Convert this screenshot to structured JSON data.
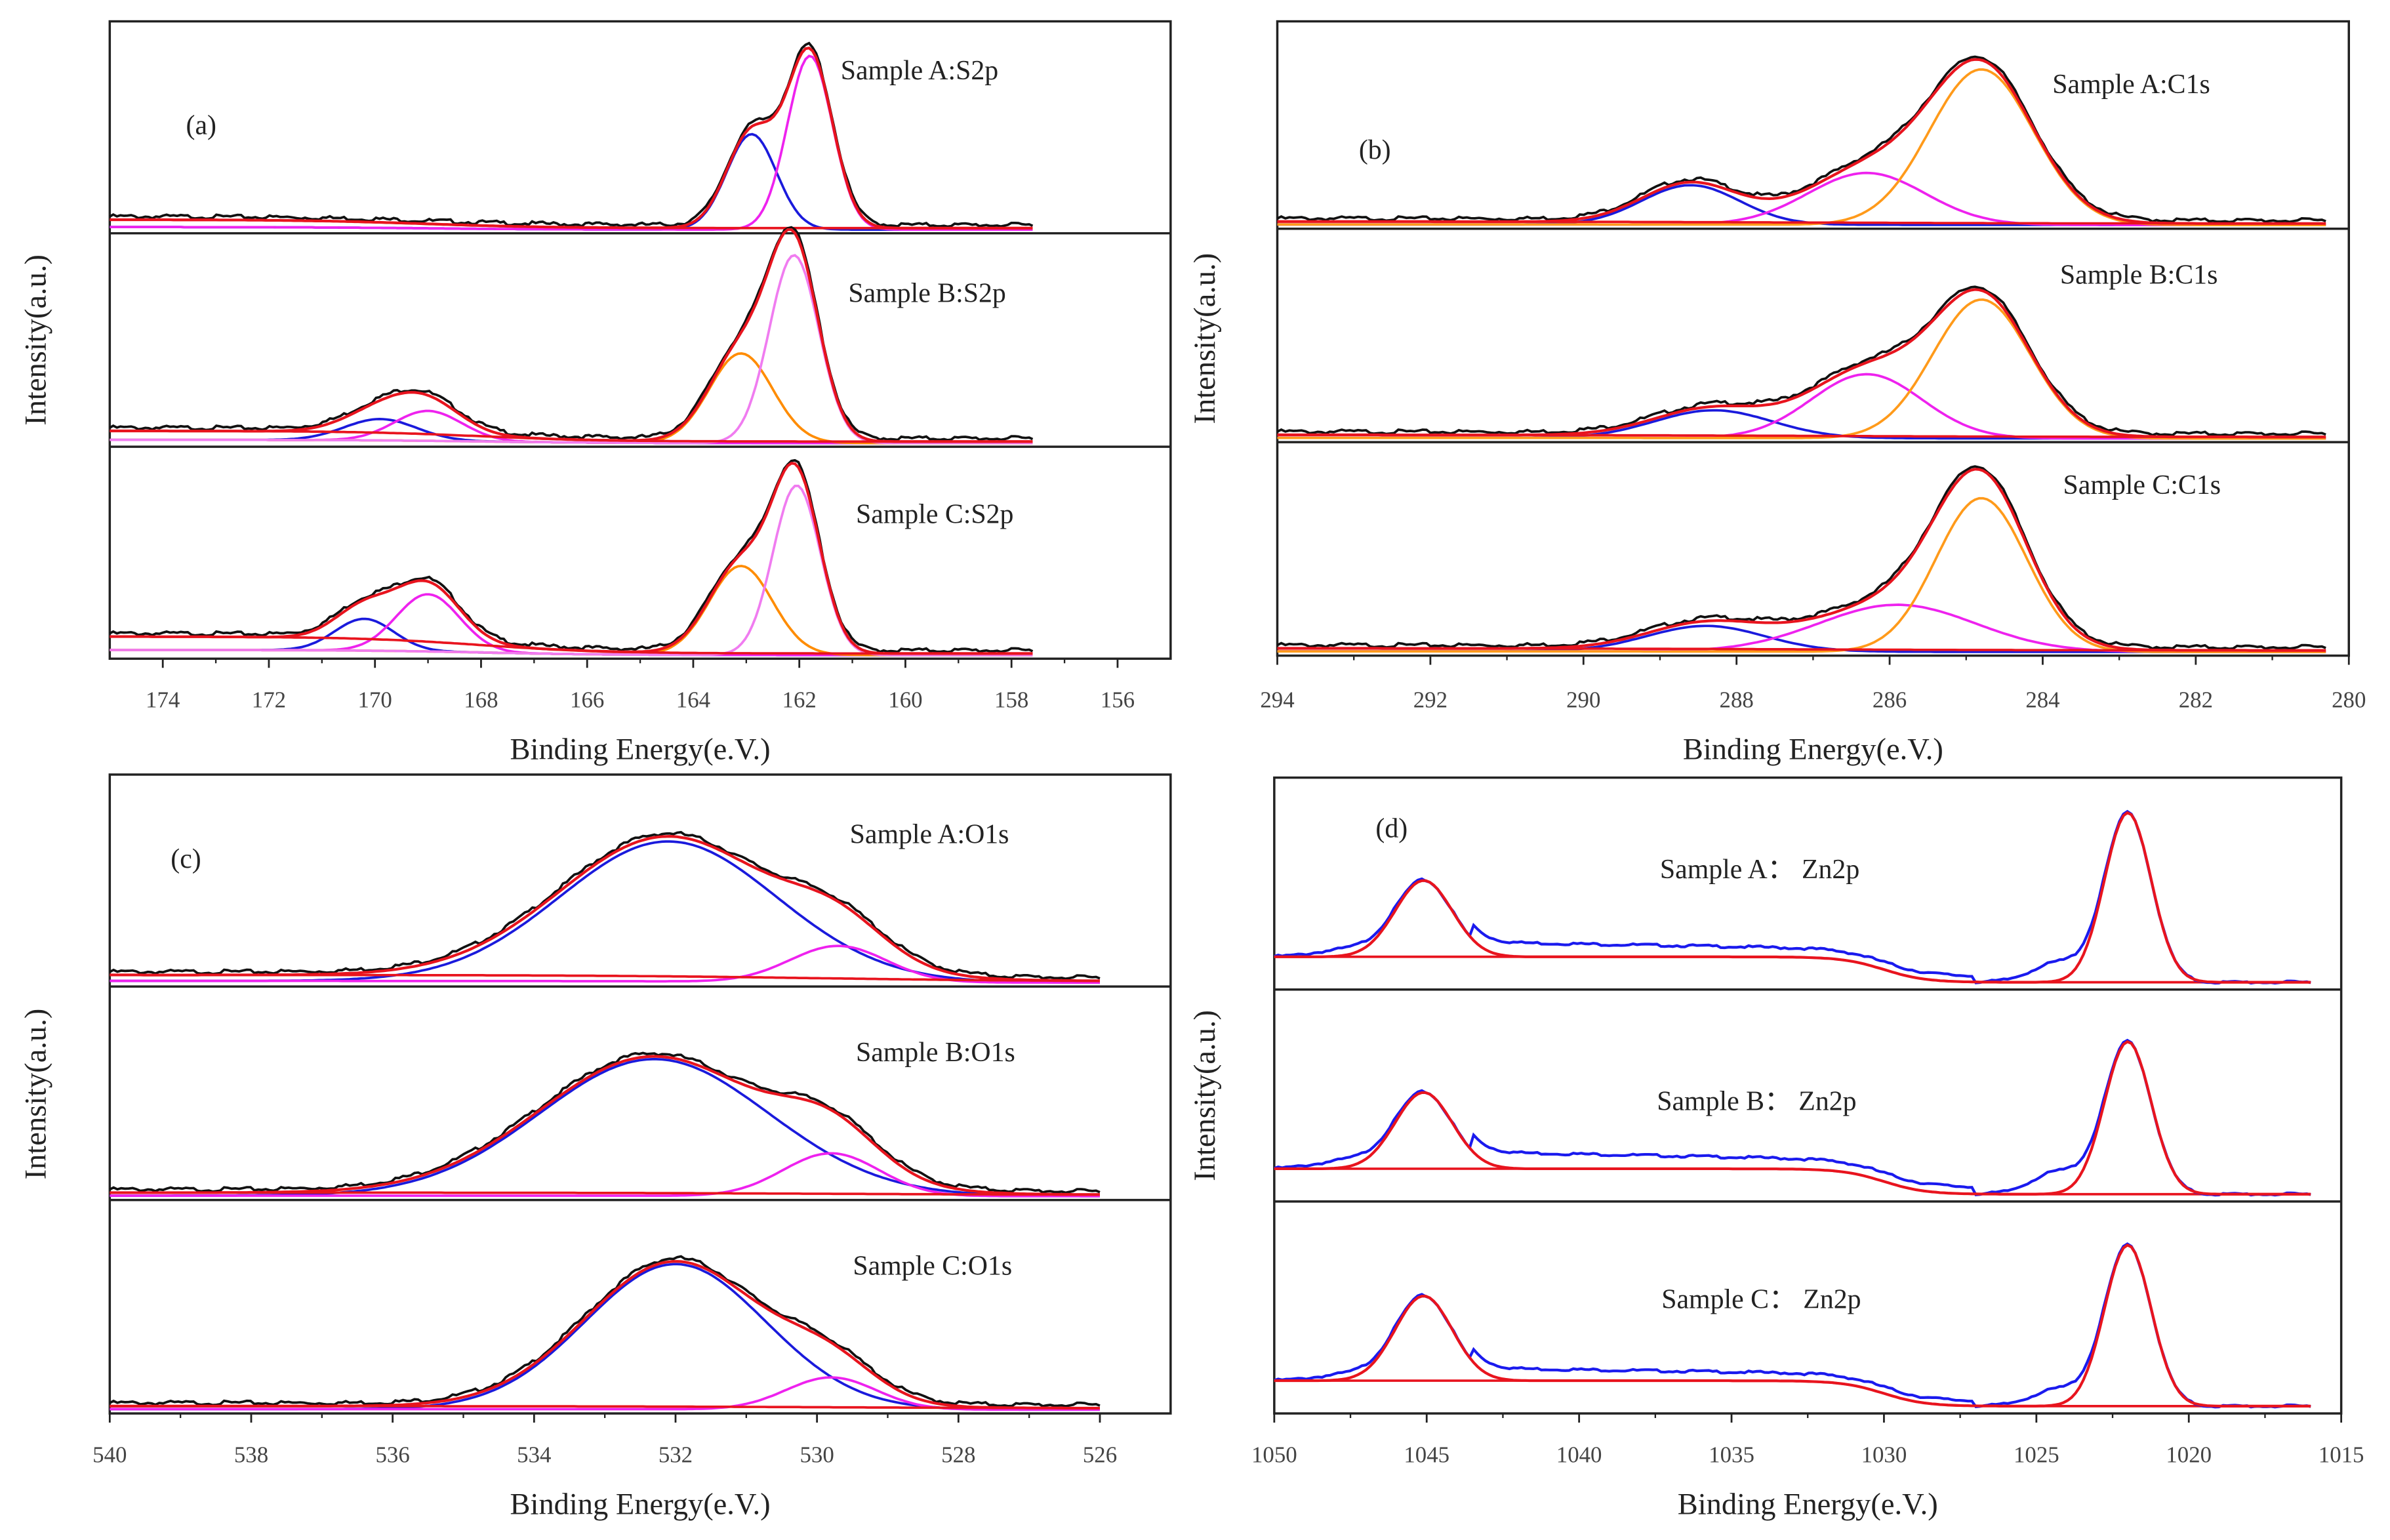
{
  "chart_data": [
    {
      "type": "line",
      "panel_label": "(a)",
      "xlabel": "Binding Energy(e.V.)",
      "ylabel": "Intensity(a.u.)",
      "xlim": [
        175,
        155
      ],
      "xticks": [
        174,
        172,
        170,
        168,
        166,
        164,
        162,
        160,
        158,
        156
      ],
      "data_range": [
        175,
        157.6
      ],
      "subplots": [
        {
          "label": "Sample A:S2p",
          "baseline": [
            0.05,
            0.01,
            169
          ],
          "components": [
            {
              "color": "#1a1adc",
              "center": 162.9,
              "height": 0.45,
              "fwhm": 1.1
            },
            {
              "color": "#ee22ee",
              "center": 161.8,
              "height": 0.82,
              "fwhm": 1.0
            }
          ]
        },
        {
          "label": "Sample B:S2p",
          "baseline": [
            0.06,
            0.01,
            168
          ],
          "components": [
            {
              "color": "#1a1adc",
              "center": 169.9,
              "height": 0.1,
              "fwhm": 1.6
            },
            {
              "color": "#ee22ee",
              "center": 169.0,
              "height": 0.14,
              "fwhm": 1.5
            },
            {
              "color": "#ff8c00",
              "center": 163.1,
              "height": 0.42,
              "fwhm": 1.4
            },
            {
              "color": "#f07cf0",
              "center": 162.1,
              "height": 0.88,
              "fwhm": 1.1
            }
          ]
        },
        {
          "label": "Sample C:S2p",
          "baseline": [
            0.09,
            0.01,
            168
          ],
          "components": [
            {
              "color": "#1a1adc",
              "center": 170.2,
              "height": 0.15,
              "fwhm": 1.3
            },
            {
              "color": "#ee22ee",
              "center": 169.0,
              "height": 0.27,
              "fwhm": 1.4
            },
            {
              "color": "#ff8c00",
              "center": 163.1,
              "height": 0.42,
              "fwhm": 1.4
            },
            {
              "color": "#f07cf0",
              "center": 162.05,
              "height": 0.8,
              "fwhm": 1.05
            }
          ]
        }
      ]
    },
    {
      "type": "line",
      "panel_label": "(b)",
      "xlabel": "Binding Energy(e.V.)",
      "ylabel": "Intensity(a.u.)",
      "xlim": [
        294,
        280
      ],
      "xticks": [
        294,
        292,
        290,
        288,
        286,
        284,
        282,
        280
      ],
      "data_range": [
        294,
        280.3
      ],
      "subplots": [
        {
          "label": "Sample A:C1s",
          "baseline": [
            0.02,
            0.01,
            287
          ],
          "components": [
            {
              "color": "#1a1adc",
              "center": 288.6,
              "height": 0.19,
              "fwhm": 1.5
            },
            {
              "color": "#ee22ee",
              "center": 286.3,
              "height": 0.25,
              "fwhm": 1.8
            },
            {
              "color": "#ff9a1a",
              "center": 284.8,
              "height": 0.75,
              "fwhm": 1.6
            }
          ]
        },
        {
          "label": "Sample B:C1s",
          "baseline": [
            0.02,
            0.01,
            287
          ],
          "components": [
            {
              "color": "#1a1adc",
              "center": 288.3,
              "height": 0.13,
              "fwhm": 1.8
            },
            {
              "color": "#ee22ee",
              "center": 286.3,
              "height": 0.3,
              "fwhm": 1.7
            },
            {
              "color": "#ff9a1a",
              "center": 284.8,
              "height": 0.65,
              "fwhm": 1.5
            }
          ]
        },
        {
          "label": "Sample C:C1s",
          "baseline": [
            0.02,
            0.01,
            287
          ],
          "components": [
            {
              "color": "#1a1adc",
              "center": 288.4,
              "height": 0.12,
              "fwhm": 1.8
            },
            {
              "color": "#ee22ee",
              "center": 285.9,
              "height": 0.22,
              "fwhm": 2.4
            },
            {
              "color": "#ff9a1a",
              "center": 284.8,
              "height": 0.72,
              "fwhm": 1.4
            }
          ]
        }
      ]
    },
    {
      "type": "line",
      "panel_label": "(c)",
      "xlabel": "Binding Energy(e.V.)",
      "ylabel": "Intensity(a.u.)",
      "xlim": [
        540,
        525
      ],
      "xticks": [
        540,
        538,
        536,
        534,
        532,
        530,
        528,
        526
      ],
      "data_range": [
        540,
        526
      ],
      "subplots": [
        {
          "label": "Sample A:O1s",
          "baseline": [
            0.04,
            0.01,
            530
          ],
          "components": [
            {
              "color": "#1a1adc",
              "center": 532.1,
              "height": 0.66,
              "fwhm": 3.6
            },
            {
              "color": "#ee22ee",
              "center": 529.7,
              "height": 0.17,
              "fwhm": 1.6
            }
          ]
        },
        {
          "label": "Sample B:O1s",
          "baseline": [
            0.02,
            0.01,
            530
          ],
          "components": [
            {
              "color": "#1a1adc",
              "center": 532.3,
              "height": 0.64,
              "fwhm": 3.8
            },
            {
              "color": "#ee22ee",
              "center": 529.8,
              "height": 0.2,
              "fwhm": 1.6
            }
          ]
        },
        {
          "label": "Sample C:O1s",
          "baseline": [
            0.02,
            0.01,
            530
          ],
          "components": [
            {
              "color": "#1a1adc",
              "center": 532.0,
              "height": 0.68,
              "fwhm": 3.0
            },
            {
              "color": "#ee22ee",
              "center": 529.8,
              "height": 0.15,
              "fwhm": 1.5
            }
          ]
        }
      ]
    },
    {
      "type": "line",
      "panel_label": "(d)",
      "xlabel": "Binding Energy(e.V.)",
      "ylabel": "Intensity(a.u.)",
      "xlim": [
        1050,
        1015
      ],
      "xticks": [
        1050,
        1045,
        1040,
        1035,
        1030,
        1025,
        1020,
        1015
      ],
      "data_range": [
        1050,
        1016
      ],
      "subplots": [
        {
          "label": "Sample A： Zn2p",
          "baseline": [
            0.14,
            0.02,
            1030
          ],
          "plateau": 0.07,
          "components": [
            {
              "color": "#e01010",
              "center": 1045.1,
              "height": 0.36,
              "fwhm": 2.2
            },
            {
              "color": "#e01010",
              "center": 1022.0,
              "height": 0.8,
              "fwhm": 1.8
            }
          ]
        },
        {
          "label": "Sample B： Zn2p",
          "baseline": [
            0.14,
            0.02,
            1030
          ],
          "plateau": 0.08,
          "components": [
            {
              "color": "#e01010",
              "center": 1045.1,
              "height": 0.36,
              "fwhm": 2.2
            },
            {
              "color": "#e01010",
              "center": 1022.0,
              "height": 0.72,
              "fwhm": 1.8
            }
          ]
        },
        {
          "label": "Sample C： Zn2p",
          "baseline": [
            0.14,
            0.02,
            1030
          ],
          "plateau": 0.06,
          "components": [
            {
              "color": "#e01010",
              "center": 1045.1,
              "height": 0.4,
              "fwhm": 2.2
            },
            {
              "color": "#e01010",
              "center": 1022.0,
              "height": 0.76,
              "fwhm": 1.8
            }
          ]
        }
      ]
    }
  ],
  "colors": {
    "envelope": "#e8141e",
    "raw": "#111111",
    "raw_zn": "#1a1aee"
  }
}
